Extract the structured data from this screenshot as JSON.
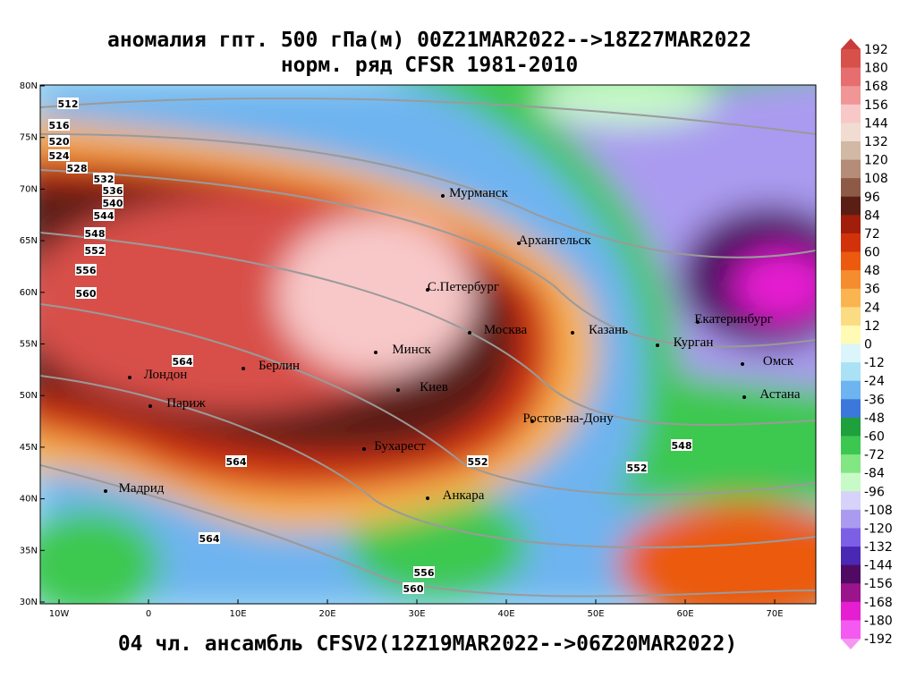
{
  "title": "аномалия гпт. 500 гПа(м) 00Z21MAR2022-->18Z27MAR2022",
  "subtitle": "норм. ряд CFSR 1981-2010",
  "footer": "04 чл. ансамбль CFSV2(12Z19MAR2022-->06Z20MAR2022)",
  "lat_ticks": [
    {
      "value": 80,
      "label": "80N"
    },
    {
      "value": 75,
      "label": "75N"
    },
    {
      "value": 70,
      "label": "70N"
    },
    {
      "value": 65,
      "label": "65N"
    },
    {
      "value": 60,
      "label": "60N"
    },
    {
      "value": 55,
      "label": "55N"
    },
    {
      "value": 50,
      "label": "50N"
    },
    {
      "value": 45,
      "label": "45N"
    },
    {
      "value": 40,
      "label": "40N"
    },
    {
      "value": 35,
      "label": "35N"
    },
    {
      "value": 30,
      "label": "30N"
    }
  ],
  "lon_ticks": [
    {
      "value": -10,
      "label": "10W"
    },
    0,
    {
      "value": 10,
      "label": "10E"
    },
    {
      "value": 20,
      "label": "20E"
    },
    {
      "value": 30,
      "label": "30E"
    },
    {
      "value": 40,
      "label": "40E"
    },
    {
      "value": 50,
      "label": "50E"
    },
    {
      "value": 60,
      "label": "60E"
    },
    {
      "value": 70,
      "label": "70E"
    }
  ],
  "cities": [
    "Мурманск",
    "Архангельск",
    "С.Петербург",
    "Москва",
    "Казань",
    "Екатеринбург",
    "Курган",
    "Омск",
    "Астана",
    "Минск",
    "Берлин",
    "Лондон",
    "Париж",
    "Киев",
    "Ростов-на-Дону",
    "Бухарест",
    "Мадрид",
    "Анкара"
  ],
  "contour_labels": [
    512,
    516,
    520,
    524,
    528,
    532,
    536,
    540,
    544,
    548,
    552,
    556,
    560,
    564,
    564,
    564,
    552,
    552,
    548,
    556,
    560
  ],
  "colorbar": {
    "labels": [
      192,
      180,
      168,
      156,
      144,
      132,
      120,
      108,
      96,
      84,
      72,
      60,
      48,
      36,
      24,
      12,
      0,
      -12,
      -24,
      -36,
      -48,
      -60,
      -72,
      -84,
      -96,
      -108,
      -120,
      -132,
      -144,
      -156,
      -168,
      -180,
      -192
    ],
    "colors": [
      "#c83c3c",
      "#d8504a",
      "#e66e6e",
      "#f09696",
      "#f8c8c8",
      "#f0dcd0",
      "#d2b9a5",
      "#b48c78",
      "#8c5a46",
      "#5a1e14",
      "#a01e0a",
      "#d2320a",
      "#eb5a0f",
      "#f58c2d",
      "#fab450",
      "#fcdc82",
      "#fffab4",
      "#dcf5fa",
      "#aae1f5",
      "#6eb4f0",
      "#3c78dc",
      "#1ea03c",
      "#3cc850",
      "#82e682",
      "#c8fac8",
      "#d7d2fa",
      "#aa9bf0",
      "#7d5fe6",
      "#4b28b4",
      "#500a64",
      "#9b148c",
      "#e61ed2",
      "#f55af0",
      "#f596f0"
    ]
  }
}
